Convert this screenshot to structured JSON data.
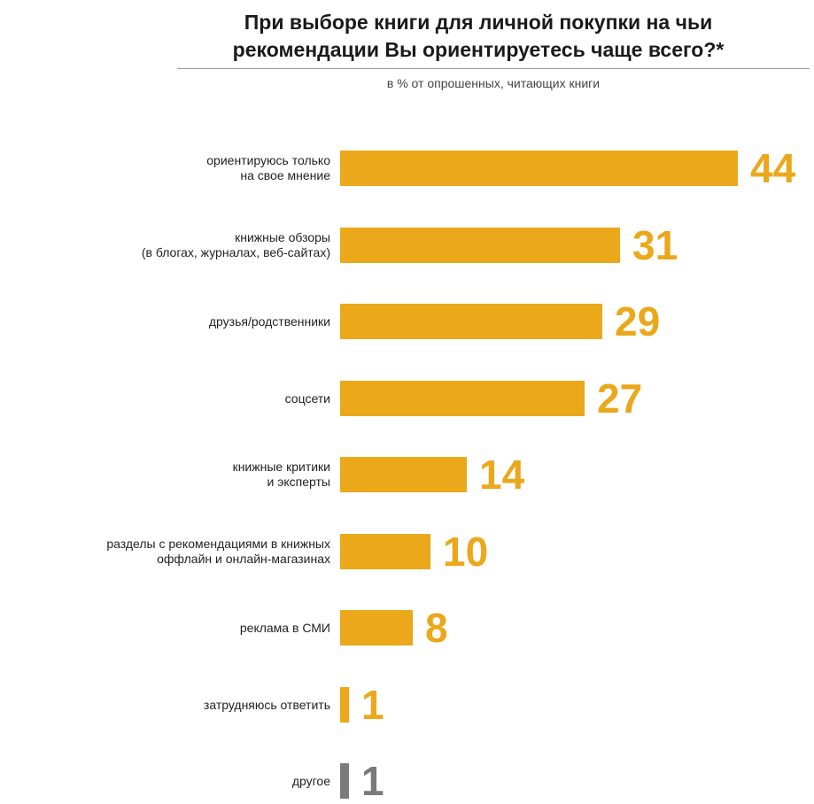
{
  "chart_data": {
    "type": "bar",
    "orientation": "horizontal",
    "title": "При выборе книги для личной покупки на чьи рекомендации Вы ориентируетесь чаще всего?*",
    "subtitle": "в % от опрошенных, читающих книги",
    "xlim": [
      0,
      44
    ],
    "grid": false,
    "categories": [
      "ориентируюсь только\nна свое мнение",
      "книжные обзоры\n(в блогах,  журналах, веб-сайтах)",
      "друзья/родственники",
      "соцсети",
      "книжные критики\nи эксперты",
      "разделы с рекомендациями в книжных\nоффлайн и онлайн-магазинах",
      "реклама в СМИ",
      "затрудняюсь ответить",
      "другое"
    ],
    "values": [
      44,
      31,
      29,
      27,
      14,
      10,
      8,
      1,
      1
    ],
    "value_labels": [
      "44",
      "31",
      "29",
      "27",
      "14",
      "10",
      "8",
      "1",
      "1"
    ],
    "colors": [
      "#eaa81a",
      "#eaa81a",
      "#eaa81a",
      "#eaa81a",
      "#eaa81a",
      "#eaa81a",
      "#eaa81a",
      "#eaa81a",
      "#7a7a7a"
    ]
  }
}
